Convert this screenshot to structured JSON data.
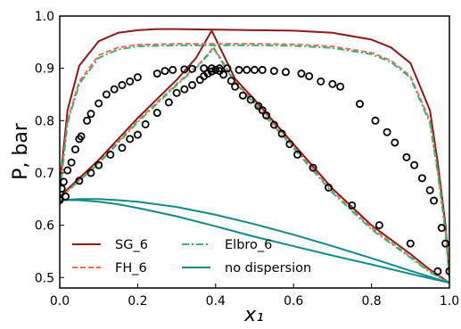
{
  "chart_data": {
    "type": "line",
    "xlabel": "x₁",
    "ylabel": "P, bar",
    "xlim": [
      0.0,
      1.0
    ],
    "ylim": [
      0.48,
      1.0
    ],
    "xticks": [
      "0.0",
      "0.2",
      "0.4",
      "0.6",
      "0.8",
      "1.0"
    ],
    "xtick_values": [
      0.0,
      0.2,
      0.4,
      0.6,
      0.8,
      1.0
    ],
    "yticks": [
      "0.5",
      "0.6",
      "0.7",
      "0.8",
      "0.9",
      "1.0"
    ],
    "ytick_values": [
      0.5,
      0.6,
      0.7,
      0.8,
      0.9,
      1.0
    ],
    "grid": false,
    "legend_position": "lower-left",
    "series": [
      {
        "name": "SG_6",
        "color": "#8b1a1a",
        "style": "solid",
        "segments": [
          {
            "x": [
              0.0,
              0.02,
              0.05,
              0.1,
              0.15,
              0.2,
              0.25,
              0.3,
              0.4,
              0.5,
              0.6,
              0.7,
              0.8,
              0.85,
              0.9,
              0.95,
              0.97,
              0.99,
              1.0
            ],
            "y": [
              0.675,
              0.82,
              0.905,
              0.952,
              0.968,
              0.973,
              0.975,
              0.975,
              0.974,
              0.973,
              0.972,
              0.968,
              0.955,
              0.94,
              0.91,
              0.82,
              0.72,
              0.6,
              0.5
            ]
          },
          {
            "x": [
              0.0,
              0.1,
              0.2,
              0.3,
              0.35,
              0.39
            ],
            "y": [
              0.655,
              0.725,
              0.805,
              0.878,
              0.92,
              0.972
            ]
          },
          {
            "x": [
              0.39,
              0.45,
              0.5,
              0.6,
              0.7,
              0.8,
              0.9,
              0.95,
              1.0
            ],
            "y": [
              0.972,
              0.88,
              0.84,
              0.755,
              0.67,
              0.6,
              0.545,
              0.515,
              0.49
            ]
          }
        ]
      },
      {
        "name": "FH_6",
        "color": "#f26b5b",
        "style": "dashed",
        "segments": [
          {
            "x": [
              0.0,
              0.02,
              0.05,
              0.1,
              0.15,
              0.2,
              0.3,
              0.4,
              0.5,
              0.6,
              0.7,
              0.8,
              0.85,
              0.9,
              0.95,
              0.97,
              0.99,
              1.0
            ],
            "y": [
              0.665,
              0.8,
              0.875,
              0.925,
              0.94,
              0.945,
              0.947,
              0.947,
              0.947,
              0.946,
              0.942,
              0.93,
              0.915,
              0.885,
              0.8,
              0.705,
              0.59,
              0.5
            ]
          },
          {
            "x": [
              0.0,
              0.1,
              0.2,
              0.3,
              0.36,
              0.395
            ],
            "y": [
              0.652,
              0.72,
              0.8,
              0.87,
              0.91,
              0.94
            ]
          },
          {
            "x": [
              0.395,
              0.45,
              0.5,
              0.6,
              0.7,
              0.8,
              0.9,
              0.95,
              1.0
            ],
            "y": [
              0.94,
              0.875,
              0.835,
              0.75,
              0.665,
              0.595,
              0.54,
              0.512,
              0.49
            ]
          }
        ]
      },
      {
        "name": "Elbro_6",
        "color": "#3cb371",
        "style": "dashdot",
        "segments": [
          {
            "x": [
              0.0,
              0.02,
              0.05,
              0.1,
              0.15,
              0.2,
              0.3,
              0.4,
              0.5,
              0.6,
              0.7,
              0.8,
              0.85,
              0.9,
              0.95,
              0.97,
              0.99,
              1.0
            ],
            "y": [
              0.66,
              0.795,
              0.87,
              0.92,
              0.936,
              0.942,
              0.944,
              0.944,
              0.944,
              0.943,
              0.939,
              0.927,
              0.912,
              0.882,
              0.795,
              0.7,
              0.585,
              0.5
            ]
          },
          {
            "x": [
              0.0,
              0.1,
              0.2,
              0.3,
              0.36,
              0.395
            ],
            "y": [
              0.652,
              0.718,
              0.797,
              0.868,
              0.908,
              0.938
            ]
          },
          {
            "x": [
              0.395,
              0.45,
              0.5,
              0.6,
              0.7,
              0.8,
              0.9,
              0.95,
              1.0
            ],
            "y": [
              0.938,
              0.872,
              0.832,
              0.747,
              0.662,
              0.592,
              0.538,
              0.51,
              0.49
            ]
          }
        ]
      },
      {
        "name": "no dispersion",
        "color": "#138a8a",
        "style": "solid",
        "segments": [
          {
            "x": [
              0.0,
              0.05,
              0.1,
              0.15,
              0.2,
              0.3,
              0.4,
              0.5,
              0.6,
              0.7,
              0.8,
              0.9,
              1.0
            ],
            "y": [
              0.648,
              0.65,
              0.65,
              0.648,
              0.645,
              0.635,
              0.62,
              0.602,
              0.582,
              0.56,
              0.537,
              0.513,
              0.49
            ]
          },
          {
            "x": [
              0.0,
              0.05,
              0.1,
              0.15,
              0.2,
              0.3,
              0.4,
              0.5,
              0.6,
              0.7,
              0.8,
              0.9,
              1.0
            ],
            "y": [
              0.648,
              0.648,
              0.645,
              0.64,
              0.633,
              0.617,
              0.598,
              0.578,
              0.56,
              0.542,
              0.525,
              0.507,
              0.49
            ]
          }
        ]
      }
    ],
    "markers": {
      "style": "open-circle",
      "color": "#000000",
      "points": [
        [
          0.0,
          0.648
        ],
        [
          0.015,
          0.655
        ],
        [
          0.05,
          0.685
        ],
        [
          0.08,
          0.7
        ],
        [
          0.1,
          0.715
        ],
        [
          0.13,
          0.735
        ],
        [
          0.16,
          0.748
        ],
        [
          0.18,
          0.765
        ],
        [
          0.2,
          0.773
        ],
        [
          0.22,
          0.793
        ],
        [
          0.25,
          0.815
        ],
        [
          0.28,
          0.835
        ],
        [
          0.3,
          0.853
        ],
        [
          0.32,
          0.86
        ],
        [
          0.34,
          0.868
        ],
        [
          0.36,
          0.878
        ],
        [
          0.37,
          0.885
        ],
        [
          0.38,
          0.89
        ],
        [
          0.39,
          0.894
        ],
        [
          0.4,
          0.897
        ],
        [
          0.41,
          0.895
        ],
        [
          0.0,
          0.65
        ],
        [
          0.005,
          0.67
        ],
        [
          0.01,
          0.683
        ],
        [
          0.02,
          0.705
        ],
        [
          0.03,
          0.72
        ],
        [
          0.04,
          0.745
        ],
        [
          0.05,
          0.765
        ],
        [
          0.055,
          0.77
        ],
        [
          0.07,
          0.8
        ],
        [
          0.08,
          0.813
        ],
        [
          0.1,
          0.833
        ],
        [
          0.12,
          0.85
        ],
        [
          0.14,
          0.86
        ],
        [
          0.16,
          0.868
        ],
        [
          0.18,
          0.875
        ],
        [
          0.2,
          0.883
        ],
        [
          0.25,
          0.89
        ],
        [
          0.27,
          0.895
        ],
        [
          0.29,
          0.897
        ],
        [
          0.32,
          0.898
        ],
        [
          0.34,
          0.899
        ],
        [
          0.37,
          0.9
        ],
        [
          0.39,
          0.9
        ],
        [
          0.41,
          0.9
        ],
        [
          0.43,
          0.9
        ],
        [
          0.46,
          0.897
        ],
        [
          0.48,
          0.897
        ],
        [
          0.5,
          0.897
        ],
        [
          0.52,
          0.897
        ],
        [
          0.55,
          0.895
        ],
        [
          0.58,
          0.893
        ],
        [
          0.62,
          0.89
        ],
        [
          0.64,
          0.885
        ],
        [
          0.67,
          0.875
        ],
        [
          0.7,
          0.87
        ],
        [
          0.72,
          0.865
        ],
        [
          0.77,
          0.832
        ],
        [
          0.81,
          0.8
        ],
        [
          0.84,
          0.778
        ],
        [
          0.86,
          0.758
        ],
        [
          0.89,
          0.73
        ],
        [
          0.91,
          0.715
        ],
        [
          0.93,
          0.69
        ],
        [
          0.95,
          0.667
        ],
        [
          0.96,
          0.647
        ],
        [
          0.98,
          0.595
        ],
        [
          0.99,
          0.565
        ],
        [
          1.0,
          0.512
        ],
        [
          0.42,
          0.888
        ],
        [
          0.44,
          0.876
        ],
        [
          0.45,
          0.865
        ],
        [
          0.47,
          0.848
        ],
        [
          0.49,
          0.84
        ],
        [
          0.51,
          0.828
        ],
        [
          0.52,
          0.82
        ],
        [
          0.53,
          0.81
        ],
        [
          0.55,
          0.792
        ],
        [
          0.57,
          0.775
        ],
        [
          0.59,
          0.755
        ],
        [
          0.61,
          0.735
        ],
        [
          0.65,
          0.71
        ],
        [
          0.69,
          0.672
        ],
        [
          0.75,
          0.638
        ],
        [
          0.82,
          0.6
        ],
        [
          0.9,
          0.565
        ],
        [
          0.97,
          0.512
        ]
      ]
    }
  }
}
